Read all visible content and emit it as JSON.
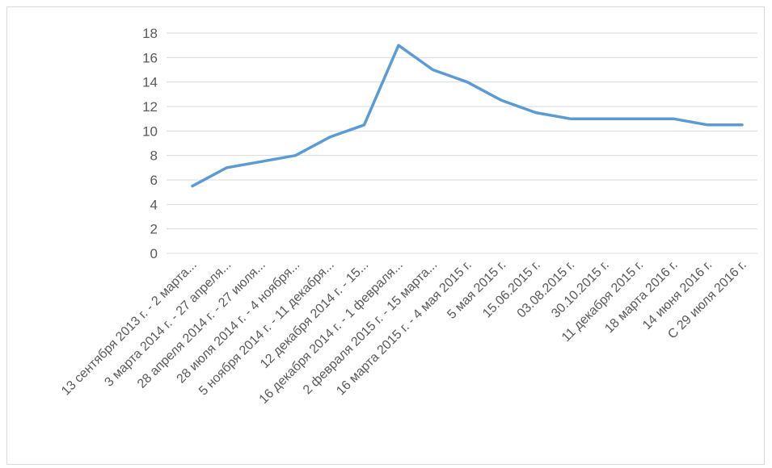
{
  "chart_data": {
    "type": "line",
    "categories": [
      "13 сентября 2013 г. - 2 марта...",
      "3 марта 2014 г. - 27 апреля...",
      "28 апреля 2014 г. - 27 июля...",
      "28 июля 2014 г. - 4 ноября...",
      "5 ноября 2014 г. - 11 декабря...",
      "12 декабря 2014 г. - 15...",
      "16 декабря 2014 г. - 1 февраля...",
      "2 февраля 2015 г. - 15 марта...",
      "16 марта 2015 г. - 4 мая 2015 г.",
      "5 мая 2015 г.",
      "15.06.2015 г.",
      "03.08.2015 г.",
      "30.10.2015 г.",
      "11 декабря 2015 г.",
      "18 марта 2016 г.",
      "14 июня 2016 г.",
      "С 29 июля 2016 г."
    ],
    "series": [
      {
        "values": [
          5.5,
          7,
          7.5,
          8,
          9.5,
          10.5,
          17,
          15,
          14,
          12.5,
          11.5,
          11,
          11,
          11,
          11,
          10.5,
          10.5
        ],
        "color": "#5b9bd5"
      }
    ],
    "y_ticks": [
      "0",
      "2",
      "4",
      "6",
      "8",
      "10",
      "12",
      "14",
      "16",
      "18"
    ],
    "ylim": [
      0,
      18
    ],
    "grid": true,
    "legend": "none"
  }
}
